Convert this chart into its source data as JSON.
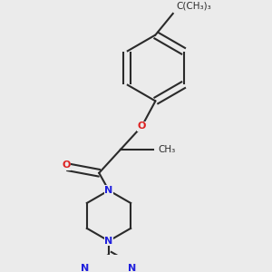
{
  "bg_color": "#ebebeb",
  "bond_color": "#2a2a2a",
  "N_color": "#2020dd",
  "O_color": "#dd2020",
  "line_width": 1.5,
  "font_size": 8,
  "dbo": 0.012,
  "figsize": [
    3.0,
    3.0
  ],
  "dpi": 100,
  "xlim": [
    -1.5,
    3.5
  ],
  "ylim": [
    -3.8,
    2.5
  ],
  "tbu_text": "C(CH₃)₃"
}
